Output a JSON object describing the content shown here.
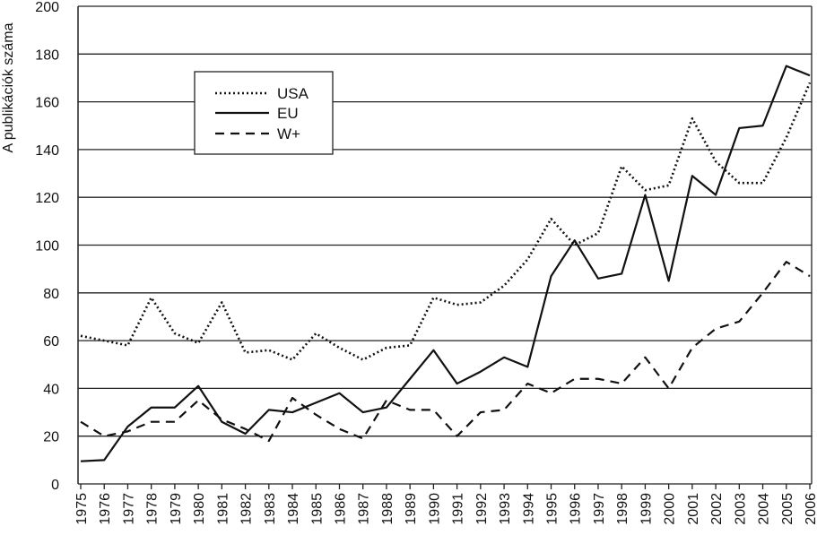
{
  "chart_data": {
    "type": "line",
    "ylabel": "A publikációk száma",
    "ylim": [
      0,
      200
    ],
    "yticks": [
      "0",
      "20",
      "40",
      "60",
      "80",
      "100",
      "120",
      "140",
      "160",
      "180",
      "200"
    ],
    "x": [
      "1975",
      "1976",
      "1977",
      "1978",
      "1979",
      "1980",
      "1981",
      "1982",
      "1983",
      "1984",
      "1985",
      "1986",
      "1987",
      "1988",
      "1989",
      "1990",
      "1991",
      "1992",
      "1993",
      "1994",
      "1995",
      "1996",
      "1997",
      "1998",
      "1999",
      "2000",
      "2001",
      "2002",
      "2003",
      "2004",
      "2005",
      "2006"
    ],
    "grid": "horizontal",
    "legend_position": "top-left",
    "series": [
      {
        "name": "USA",
        "style": "dotted",
        "values": [
          62,
          60,
          58,
          78,
          63,
          59,
          76,
          55,
          56,
          52,
          63,
          57,
          52,
          57,
          58,
          78,
          75,
          76,
          83,
          94,
          111,
          100,
          105,
          133,
          123,
          125,
          153,
          135,
          126,
          126,
          145,
          168
        ]
      },
      {
        "name": "EU",
        "style": "solid",
        "values": [
          9.5,
          10,
          24,
          32,
          32,
          41,
          26,
          21,
          31,
          30,
          34,
          38,
          30,
          32,
          44,
          56,
          42,
          47,
          53,
          49,
          87,
          102,
          86,
          88,
          121,
          85,
          129,
          121,
          149,
          150,
          175,
          171
        ]
      },
      {
        "name": "W+",
        "style": "dashed",
        "values": [
          26,
          20,
          22,
          26,
          26,
          35,
          27,
          23,
          18,
          36,
          29,
          23,
          19,
          35,
          31,
          31,
          20,
          30,
          31,
          42,
          38,
          44,
          44,
          42,
          53,
          40,
          57,
          65,
          68,
          80,
          93,
          87
        ]
      }
    ]
  }
}
